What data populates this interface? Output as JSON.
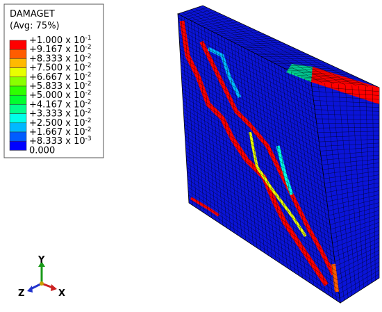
{
  "legend": {
    "title": "DAMAGET",
    "subtitle": "(Avg: 75%)",
    "labels": [
      {
        "base": "+1.000 x 10",
        "exp": "-1"
      },
      {
        "base": "+9.167 x 10",
        "exp": "-2"
      },
      {
        "base": "+8.333 x 10",
        "exp": "-2"
      },
      {
        "base": "+7.500 x 10",
        "exp": "-2"
      },
      {
        "base": "+6.667 x 10",
        "exp": "-2"
      },
      {
        "base": "+5.833 x 10",
        "exp": "-2"
      },
      {
        "base": "+5.000 x 10",
        "exp": "-2"
      },
      {
        "base": "+4.167 x 10",
        "exp": "-2"
      },
      {
        "base": "+3.333 x 10",
        "exp": "-2"
      },
      {
        "base": "+2.500 x 10",
        "exp": "-2"
      },
      {
        "base": "+1.667 x 10",
        "exp": "-2"
      },
      {
        "base": "+8.333 x 10",
        "exp": "-3"
      },
      {
        "base": "0.000",
        "exp": null
      }
    ],
    "colors": [
      "#ff0000",
      "#ff5c00",
      "#ffb900",
      "#e8ff00",
      "#8aff00",
      "#2eff00",
      "#00ff2e",
      "#00ff8a",
      "#00ffe8",
      "#00b9ff",
      "#005cff",
      "#0000ff"
    ]
  },
  "triad": {
    "y": "Y",
    "z": "Z",
    "x": "X"
  }
}
